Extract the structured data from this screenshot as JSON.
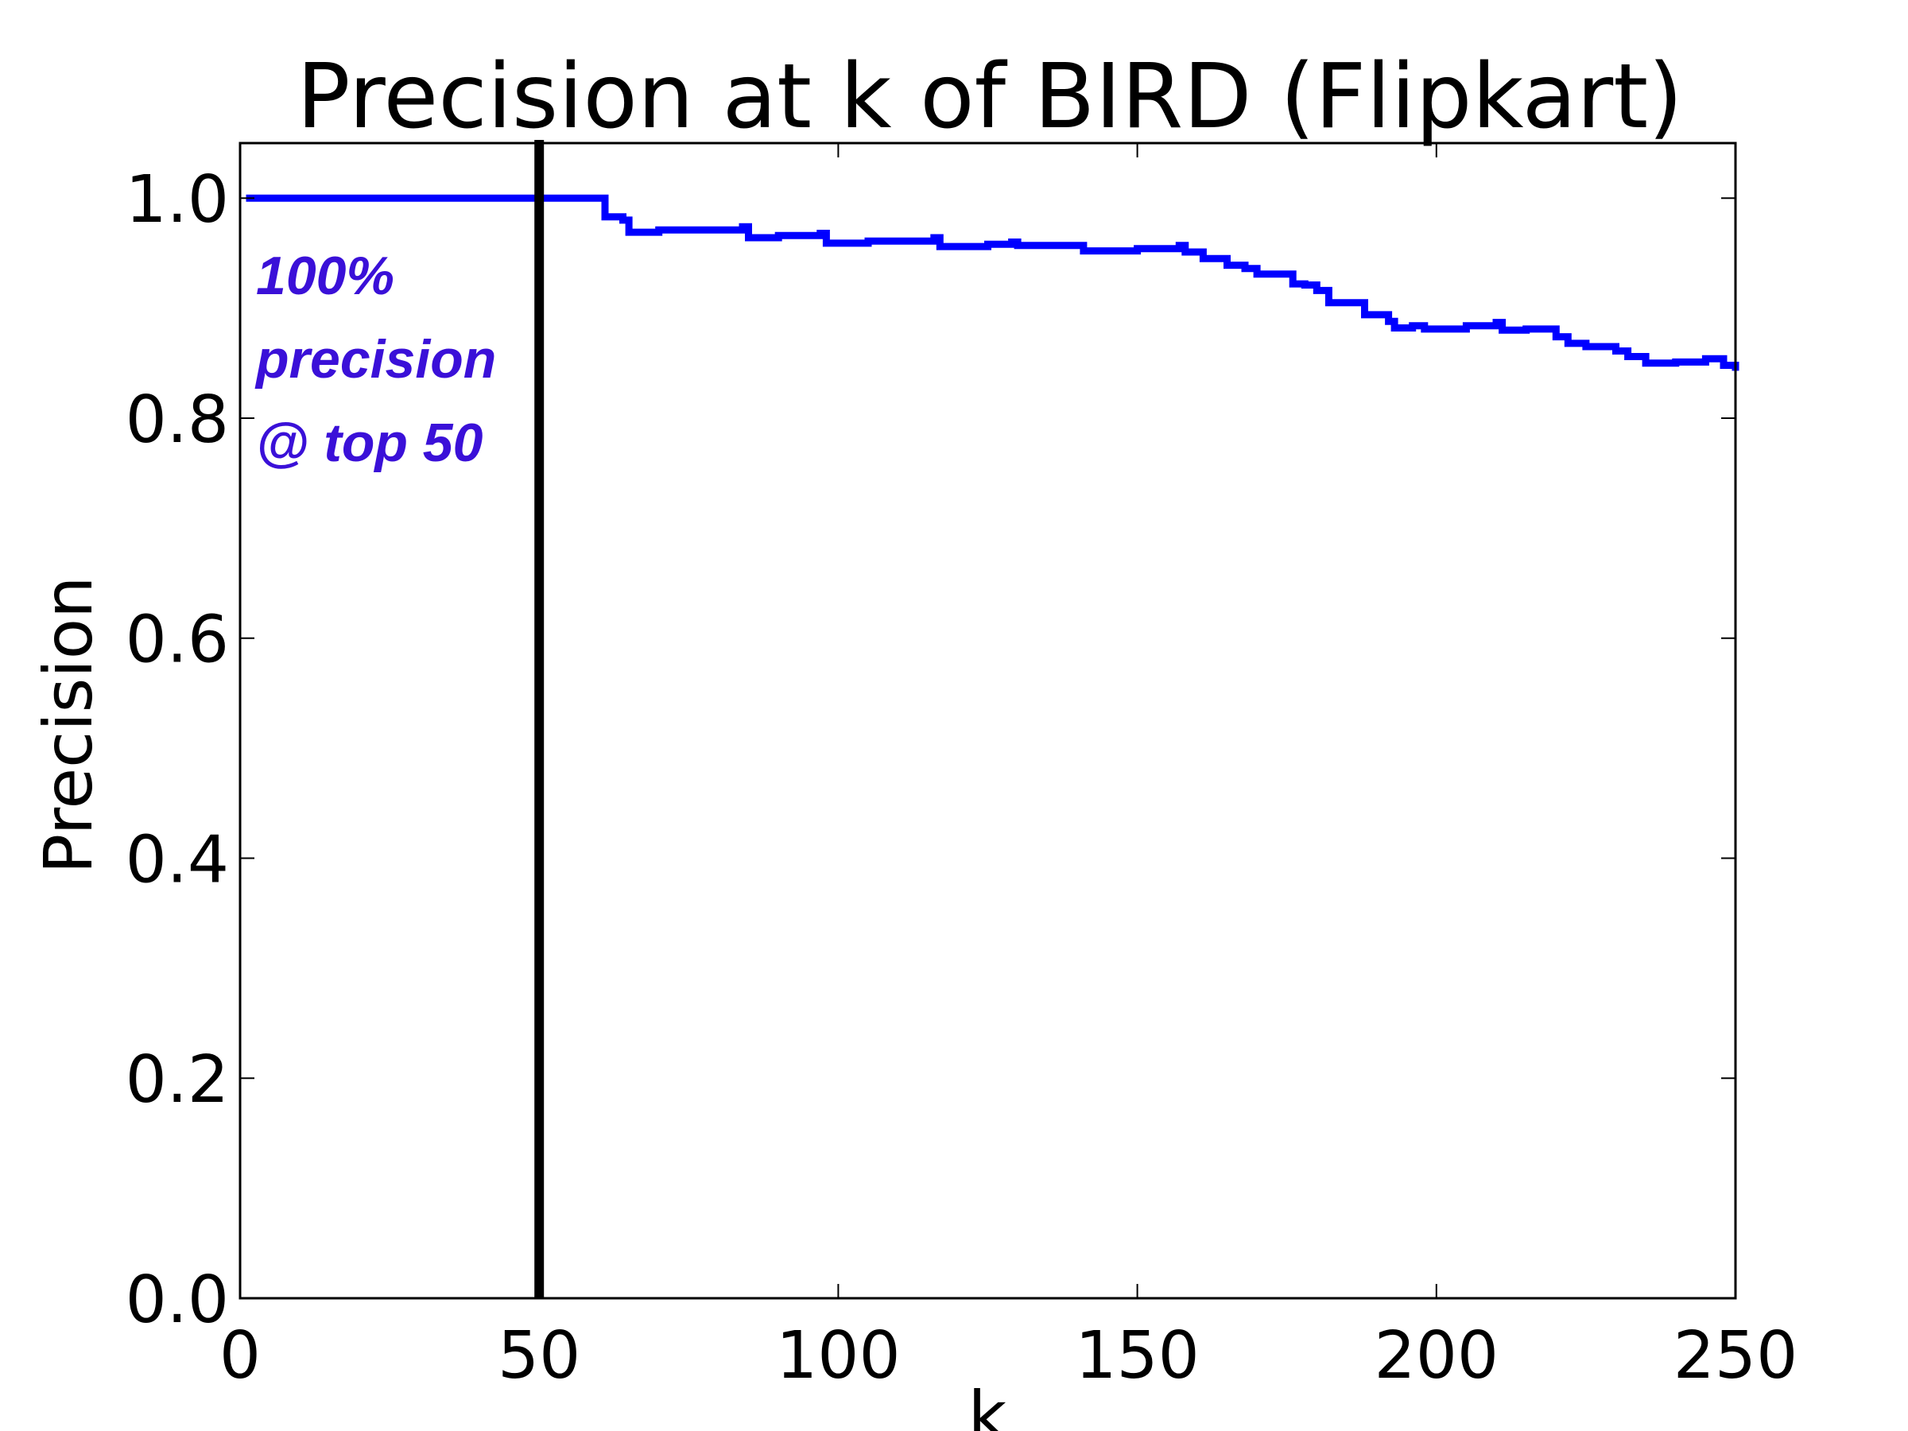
{
  "chart_data": {
    "type": "line",
    "title": "Precision at k of BIRD (Flipkart)",
    "xlabel": "k",
    "ylabel": "Precision",
    "xlim": [
      0,
      250
    ],
    "ylim": [
      0.0,
      1.05
    ],
    "x_ticks": [
      0,
      50,
      100,
      150,
      200,
      250
    ],
    "x_tick_labels": [
      "0",
      "50",
      "100",
      "150",
      "200",
      "250"
    ],
    "y_ticks": [
      0.0,
      0.2,
      0.4,
      0.6,
      0.8,
      1.0
    ],
    "y_tick_labels": [
      "0.0",
      "0.2",
      "0.4",
      "0.6",
      "0.8",
      "1.0"
    ],
    "grid": false,
    "series": [
      {
        "color": "#0000ff",
        "x": [
          1,
          60,
          61,
          63,
          64,
          65,
          66,
          70,
          84,
          85,
          90,
          97,
          98,
          105,
          116,
          117,
          125,
          129,
          130,
          140,
          141,
          150,
          157,
          158,
          160,
          161,
          164,
          165,
          168,
          170,
          173,
          176,
          178,
          180,
          182,
          185,
          188,
          190,
          192,
          193,
          196,
          198,
          205,
          210,
          211,
          215,
          218,
          220,
          222,
          225,
          228,
          230,
          232,
          235,
          240,
          245,
          248,
          250
        ],
        "y": [
          1.0,
          1.0,
          0.983,
          0.983,
          0.98,
          0.969,
          0.969,
          0.971,
          0.974,
          0.964,
          0.966,
          0.968,
          0.959,
          0.961,
          0.964,
          0.956,
          0.958,
          0.96,
          0.957,
          0.957,
          0.952,
          0.954,
          0.957,
          0.951,
          0.951,
          0.945,
          0.945,
          0.939,
          0.936,
          0.931,
          0.931,
          0.922,
          0.921,
          0.916,
          0.905,
          0.905,
          0.894,
          0.894,
          0.888,
          0.882,
          0.884,
          0.881,
          0.884,
          0.887,
          0.88,
          0.881,
          0.881,
          0.874,
          0.868,
          0.865,
          0.865,
          0.861,
          0.856,
          0.85,
          0.851,
          0.854,
          0.848,
          0.843
        ]
      }
    ],
    "reference_line": {
      "x": 50,
      "color": "#000000"
    },
    "annotation": {
      "lines": [
        "100%",
        "precision",
        "@ top 50"
      ],
      "color": "#3a10d8"
    }
  }
}
